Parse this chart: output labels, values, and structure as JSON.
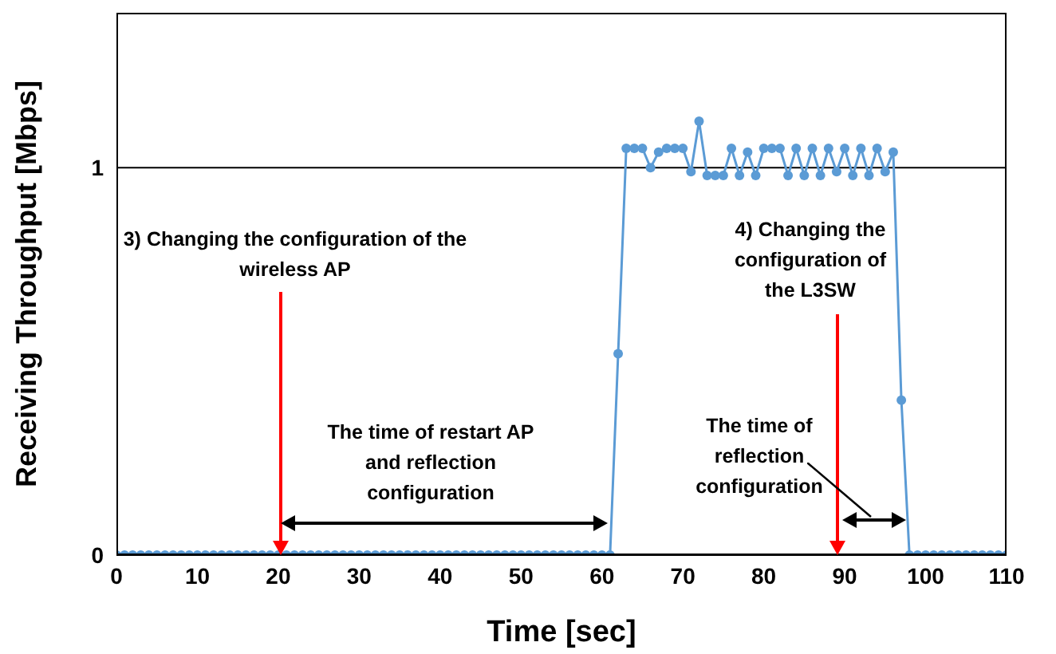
{
  "chart_data": {
    "type": "line",
    "xlabel": "Time [sec]",
    "ylabel": "Receiving Throughput [Mbps]",
    "x": [
      0,
      1,
      2,
      3,
      4,
      5,
      6,
      7,
      8,
      9,
      10,
      11,
      12,
      13,
      14,
      15,
      16,
      17,
      18,
      19,
      20,
      21,
      22,
      23,
      24,
      25,
      26,
      27,
      28,
      29,
      30,
      31,
      32,
      33,
      34,
      35,
      36,
      37,
      38,
      39,
      40,
      41,
      42,
      43,
      44,
      45,
      46,
      47,
      48,
      49,
      50,
      51,
      52,
      53,
      54,
      55,
      56,
      57,
      58,
      59,
      60,
      61,
      62,
      63,
      64,
      65,
      66,
      67,
      68,
      69,
      70,
      71,
      72,
      73,
      74,
      75,
      76,
      77,
      78,
      79,
      80,
      81,
      82,
      83,
      84,
      85,
      86,
      87,
      88,
      89,
      90,
      91,
      92,
      93,
      94,
      95,
      96,
      97,
      98,
      99,
      100,
      101,
      102,
      103,
      104,
      105,
      106,
      107,
      108,
      109,
      110
    ],
    "series": [
      {
        "color": "#5b9bd5",
        "values": [
          0,
          0,
          0,
          0,
          0,
          0,
          0,
          0,
          0,
          0,
          0,
          0,
          0,
          0,
          0,
          0,
          0,
          0,
          0,
          0,
          0,
          0,
          0,
          0,
          0,
          0,
          0,
          0,
          0,
          0,
          0,
          0,
          0,
          0,
          0,
          0,
          0,
          0,
          0,
          0,
          0,
          0,
          0,
          0,
          0,
          0,
          0,
          0,
          0,
          0,
          0,
          0,
          0,
          0,
          0,
          0,
          0,
          0,
          0,
          0,
          0,
          0,
          0.52,
          1.05,
          1.05,
          1.05,
          1.0,
          1.04,
          1.05,
          1.05,
          1.05,
          0.99,
          1.12,
          0.98,
          0.98,
          0.98,
          1.05,
          0.98,
          1.04,
          0.98,
          1.05,
          1.05,
          1.05,
          0.98,
          1.05,
          0.98,
          1.05,
          0.98,
          1.05,
          0.99,
          1.05,
          0.98,
          1.05,
          0.98,
          1.05,
          0.99,
          1.04,
          0.4,
          0,
          0,
          0,
          0,
          0,
          0,
          0,
          0,
          0,
          0,
          0,
          0,
          0
        ]
      }
    ],
    "xlim": [
      0,
      110
    ],
    "xticks": [
      0,
      10,
      20,
      30,
      40,
      50,
      60,
      70,
      80,
      90,
      100,
      110
    ],
    "ylim": [
      0,
      1.4
    ],
    "yticks": [
      0,
      1
    ],
    "grid": "y",
    "marker": "circle",
    "line_style": "solid",
    "annotations": [
      "3) Changing the configuration of the wireless AP",
      "4) Changing the configuration of the L3SW",
      "The time of restart AP and reflection configuration",
      "The time of reflection configuration"
    ]
  }
}
